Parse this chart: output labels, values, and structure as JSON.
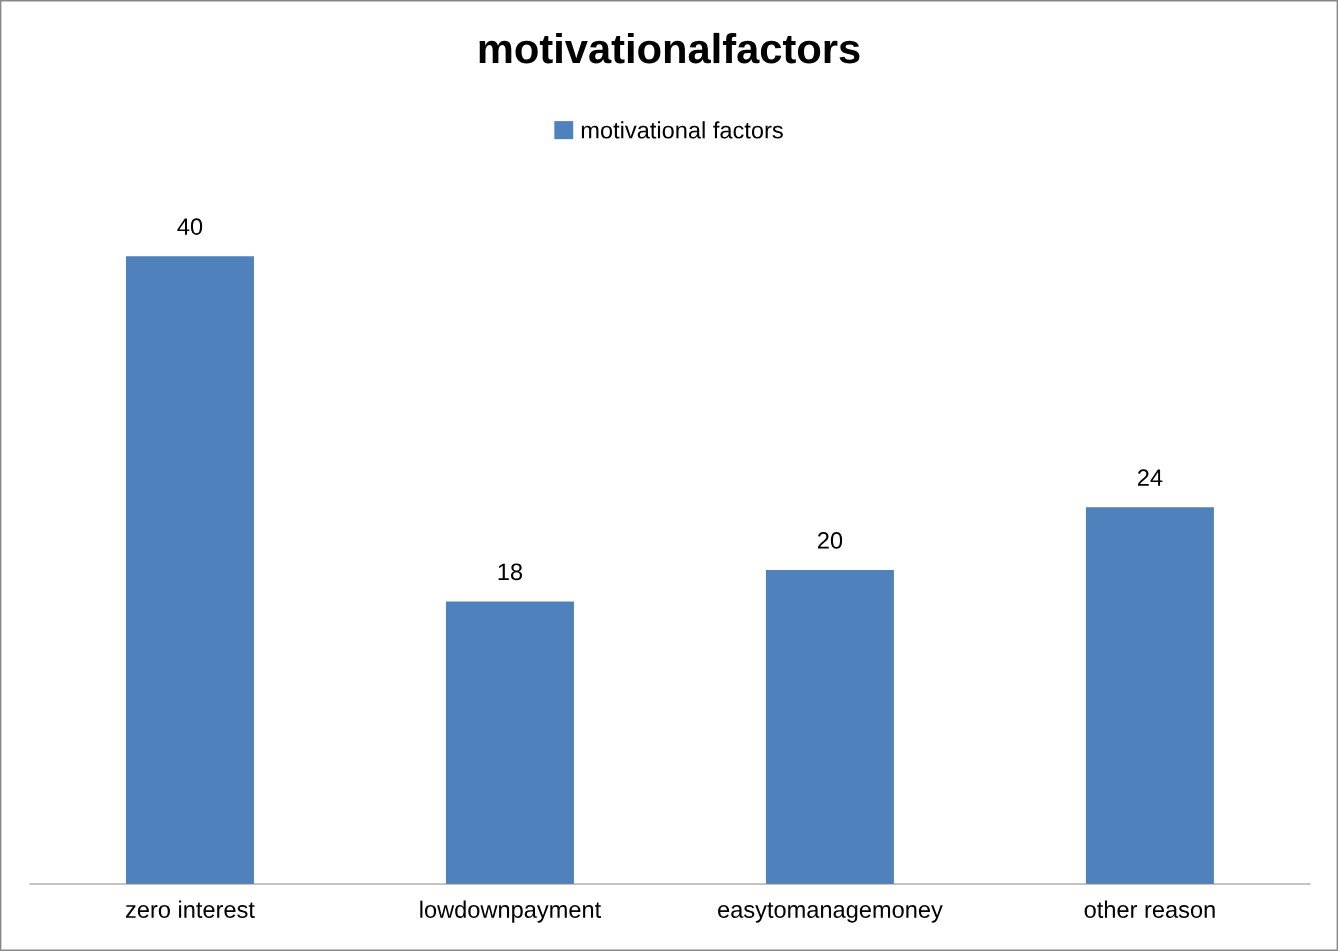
{
  "chart_data": {
    "type": "bar",
    "title": "motivationalfactors",
    "categories": [
      "zero interest",
      "lowdownpayment",
      "easytomanagemoney",
      "other reason"
    ],
    "series": [
      {
        "name": "motivational factors",
        "color": "#4f81bd",
        "values": [
          40,
          18,
          20,
          24
        ]
      }
    ],
    "tick_labels": "x",
    "data_labels": true,
    "legend": "top",
    "grid": false
  }
}
